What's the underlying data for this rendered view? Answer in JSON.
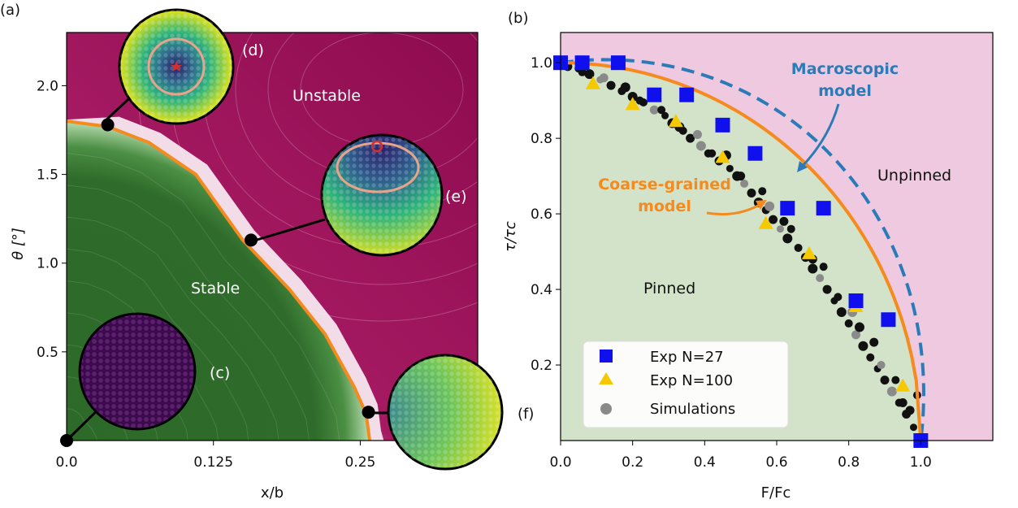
{
  "colors": {
    "unstable": "#8e0b4f",
    "stable": "#2f6b2b",
    "boundary": "#f58a1f",
    "macro": "#2b7bb9",
    "exp27": "#1010ee",
    "exp100": "#f5c800",
    "sim_black": "#111111",
    "sim_grey": "#8a8a8a",
    "pinned_bg": "#d3e3c9",
    "unpinned_bg": "#efc9e0"
  },
  "panel_a": {
    "label": "(a)",
    "xlabel": "x/b",
    "ylabel": "θ [°]",
    "xticks": [
      "0.0",
      "0.125",
      "0.25"
    ],
    "yticks": [
      "0.5",
      "1.0",
      "1.5",
      "2.0"
    ],
    "stable_label": "Stable",
    "unstable_label": "Unstable",
    "insets": [
      {
        "label": "(c)",
        "icon": "uniform-purple-disc-icon"
      },
      {
        "label": "(d)",
        "icon": "centered-gradient-disc-icon"
      },
      {
        "label": "(e)",
        "icon": "offset-gradient-disc-icon"
      },
      {
        "label": "(f)",
        "icon": "edge-gradient-disc-icon"
      }
    ]
  },
  "panel_b": {
    "label": "(b)",
    "xlabel": "F/Fc",
    "ylabel": "τ/τc",
    "xticks": [
      "0.0",
      "0.2",
      "0.4",
      "0.6",
      "0.8",
      "1.0"
    ],
    "yticks": [
      "0.2",
      "0.4",
      "0.6",
      "0.8",
      "1.0"
    ],
    "pinned_label": "Pinned",
    "unpinned_label": "Unpinned",
    "macro_label_1": "Macroscopic",
    "macro_label_2": "model",
    "coarse_label_1": "Coarse-grained",
    "coarse_label_2": "model",
    "legend": [
      "Exp N=27",
      "Exp N=100",
      "Simulations"
    ]
  },
  "chart_data": [
    {
      "type": "heatmap",
      "xlabel": "x/b",
      "ylabel": "θ [°]",
      "xlim": [
        0.0,
        0.35
      ],
      "ylim": [
        0.0,
        2.3
      ],
      "regions": [
        "Stable",
        "Unstable"
      ],
      "boundary": {
        "x": [
          0.0,
          0.035,
          0.07,
          0.11,
          0.15,
          0.19,
          0.22,
          0.245,
          0.255,
          0.258
        ],
        "y": [
          1.8,
          1.77,
          1.68,
          1.5,
          1.13,
          0.85,
          0.6,
          0.3,
          0.15,
          0.0
        ]
      },
      "markers": [
        {
          "x": 0.0,
          "y": 0.0,
          "label": "(c)"
        },
        {
          "x": 0.035,
          "y": 1.78,
          "label": "(d)"
        },
        {
          "x": 0.157,
          "y": 1.13,
          "label": "(e)"
        },
        {
          "x": 0.257,
          "y": 0.16,
          "label": "(f)"
        }
      ]
    },
    {
      "type": "scatter",
      "xlabel": "F/Fc",
      "ylabel": "τ/τc",
      "xlim": [
        0.0,
        1.2
      ],
      "ylim": [
        0.0,
        1.08
      ],
      "legend_position": "bottom-left",
      "series": [
        {
          "name": "Exp N=27",
          "marker": "square",
          "x": [
            0.0,
            0.06,
            0.16,
            0.26,
            0.35,
            0.45,
            0.54,
            0.63,
            0.73,
            0.82,
            0.91,
            1.0
          ],
          "y": [
            1.0,
            1.0,
            1.0,
            0.915,
            0.915,
            0.835,
            0.76,
            0.615,
            0.615,
            0.37,
            0.32,
            0.0
          ]
        },
        {
          "name": "Exp N=100",
          "marker": "triangle",
          "x": [
            0.0,
            0.09,
            0.2,
            0.32,
            0.45,
            0.57,
            0.69,
            0.82,
            0.95,
            1.0
          ],
          "y": [
            1.0,
            0.945,
            0.89,
            0.845,
            0.75,
            0.575,
            0.495,
            0.355,
            0.145,
            0.0
          ]
        },
        {
          "name": "Simulations",
          "marker": "circle",
          "x": [
            0.02,
            0.05,
            0.08,
            0.11,
            0.14,
            0.17,
            0.2,
            0.23,
            0.26,
            0.29,
            0.31,
            0.34,
            0.36,
            0.39,
            0.41,
            0.44,
            0.47,
            0.49,
            0.51,
            0.53,
            0.55,
            0.57,
            0.59,
            0.61,
            0.63,
            0.66,
            0.68,
            0.7,
            0.72,
            0.74,
            0.76,
            0.78,
            0.8,
            0.82,
            0.84,
            0.86,
            0.88,
            0.9,
            0.92,
            0.94,
            0.96,
            0.98,
            0.99,
            0.12,
            0.22,
            0.33,
            0.42,
            0.5,
            0.58,
            0.64,
            0.7,
            0.77,
            0.83,
            0.89,
            0.95,
            0.06,
            0.18,
            0.28,
            0.38,
            0.46,
            0.56,
            0.62,
            0.73,
            0.81,
            0.87,
            0.93,
            0.97
          ],
          "y": [
            0.99,
            0.985,
            0.97,
            0.955,
            0.94,
            0.925,
            0.91,
            0.895,
            0.875,
            0.86,
            0.84,
            0.82,
            0.8,
            0.78,
            0.76,
            0.74,
            0.72,
            0.7,
            0.68,
            0.655,
            0.63,
            0.61,
            0.585,
            0.56,
            0.535,
            0.51,
            0.485,
            0.455,
            0.43,
            0.4,
            0.37,
            0.34,
            0.31,
            0.28,
            0.25,
            0.22,
            0.19,
            0.16,
            0.13,
            0.1,
            0.07,
            0.035,
            0.12,
            0.96,
            0.9,
            0.83,
            0.76,
            0.7,
            0.62,
            0.56,
            0.48,
            0.38,
            0.3,
            0.2,
            0.1,
            0.975,
            0.935,
            0.875,
            0.81,
            0.755,
            0.66,
            0.58,
            0.46,
            0.34,
            0.26,
            0.16,
            0.08
          ],
          "sizes": [
            11,
            10,
            12,
            9,
            11,
            10,
            12,
            10,
            11,
            9,
            12,
            10,
            11,
            12,
            10,
            11,
            9,
            12,
            10,
            11,
            12,
            10,
            11,
            9,
            12,
            10,
            11,
            12,
            10,
            11,
            9,
            12,
            10,
            11,
            12,
            10,
            9,
            11,
            12,
            10,
            11,
            9,
            10,
            11,
            10,
            12,
            10,
            11,
            12,
            10,
            11,
            10,
            12,
            10,
            11,
            10,
            12,
            10,
            11,
            12,
            10,
            11,
            10,
            12,
            11,
            10,
            11
          ]
        }
      ],
      "curves": [
        {
          "name": "Coarse-grained model",
          "style": "solid",
          "color": "#f58a1f"
        },
        {
          "name": "Macroscopic model",
          "style": "dashed",
          "color": "#2b7bb9"
        }
      ]
    }
  ]
}
